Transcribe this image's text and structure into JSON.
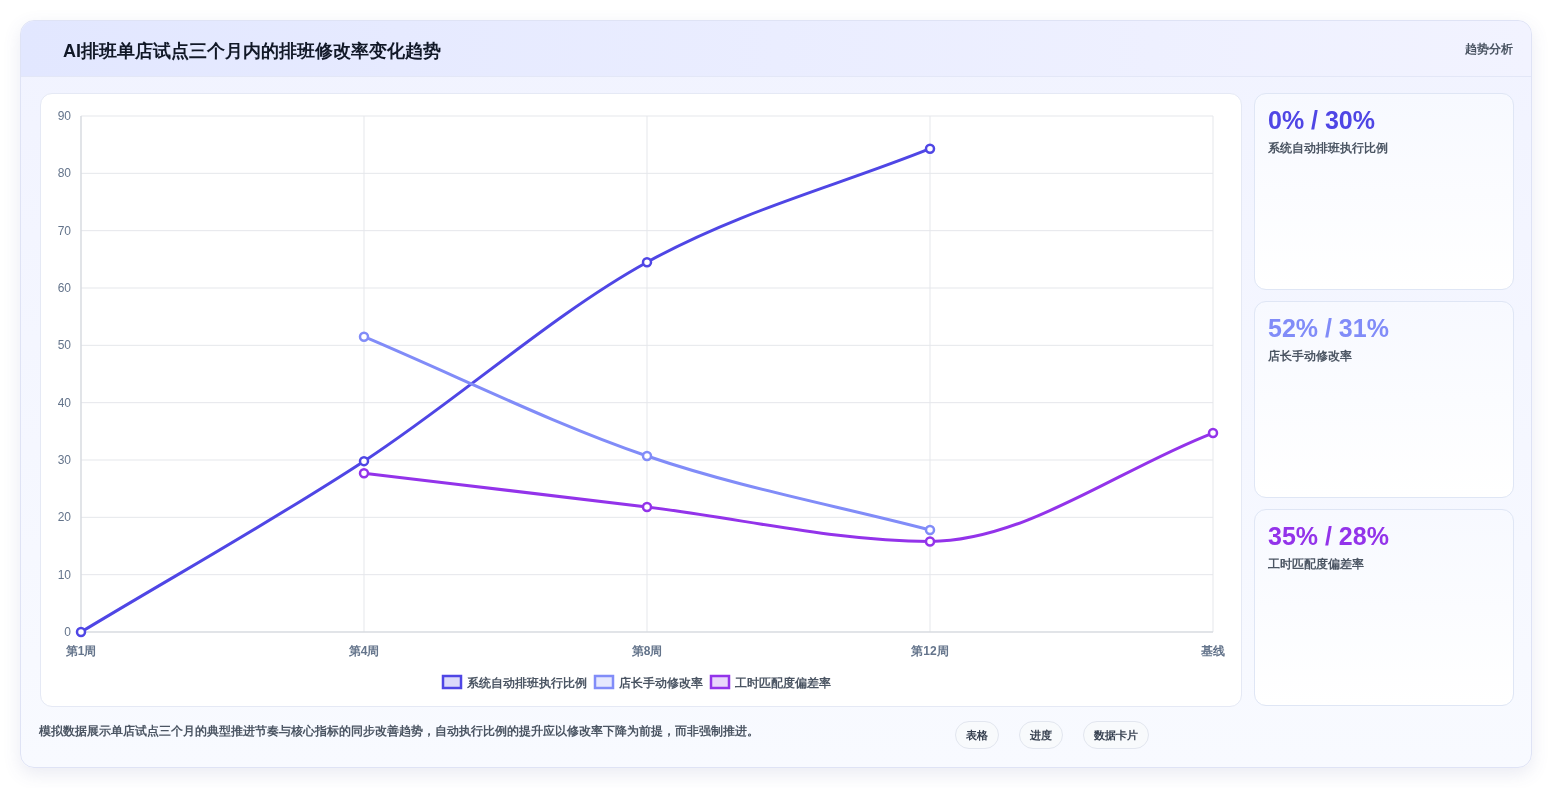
{
  "chart_data": [
    {
      "type": "line",
      "title": "AI排班单店试点三个月内的排班修改率变化趋势",
      "categories": [
        "第1周",
        "第4周",
        "第8周",
        "第12周",
        "基线"
      ],
      "series": [
        {
          "name": "系统自动排班执行比例",
          "color": "#4f46e5",
          "values": [
            0,
            29.8,
            64.5,
            84.3,
            null
          ]
        },
        {
          "name": "店长手动修改率",
          "color": "#818cf8",
          "values": [
            null,
            51.5,
            30.7,
            17.8,
            null
          ]
        },
        {
          "name": "工时匹配度偏差率",
          "color": "#9333ea",
          "values": [
            null,
            27.7,
            21.8,
            15.8,
            34.7
          ]
        }
      ],
      "ylim": [
        0,
        90
      ],
      "yticks": [
        0,
        10,
        20,
        30,
        40,
        50,
        60,
        70,
        80,
        90
      ],
      "grid": true,
      "legend": "bottom",
      "marker": "circle",
      "line_style": "solid",
      "annotations": [
        "趋势分析",
        "模拟数据展示单店试点三个月的典型推进节奏与核心指标的同步改善趋势，自动执行比例的提升应以修改率下降为前提，而非强制推进。",
        "表格",
        "进度",
        "数据卡片"
      ]
    },
    {
      "type": "other",
      "title": "0% / 30%",
      "subtitle": "系统自动排班执行比例"
    },
    {
      "type": "other",
      "title": "52% / 31%",
      "subtitle": "店长手动修改率"
    },
    {
      "type": "other",
      "title": "35% / 28%",
      "subtitle": "工时匹配度偏差率"
    }
  ]
}
